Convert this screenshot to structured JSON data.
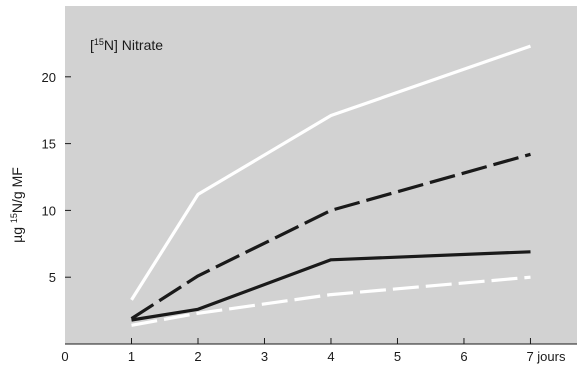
{
  "chart_data": {
    "type": "line",
    "ylabel_parts": [
      "µg ",
      "15",
      "N/g MF"
    ],
    "annotation_parts": [
      "[",
      "15",
      "N] Nitrate"
    ],
    "x_ticks": [
      0,
      1,
      2,
      3,
      4,
      5,
      6,
      7
    ],
    "x_tick_labels": [
      "0",
      "1",
      "2",
      "3",
      "4",
      "5",
      "6",
      "7 jours"
    ],
    "y_ticks": [
      5,
      10,
      15,
      20
    ],
    "y_tick_labels": [
      "5",
      "10",
      "15",
      "20"
    ],
    "xlim": [
      0,
      7.7
    ],
    "ylim": [
      0,
      25.3
    ],
    "grid": false,
    "background_color": "#d2d2d2",
    "series": [
      {
        "color": "#ffffff",
        "dash": "solid",
        "x": [
          1,
          2,
          4,
          7
        ],
        "y": [
          3.3,
          11.2,
          17.1,
          22.3
        ]
      },
      {
        "color": "#1a1a1a",
        "dash": "dashed",
        "x": [
          1,
          2,
          4,
          7
        ],
        "y": [
          1.9,
          5.1,
          10.0,
          14.2
        ]
      },
      {
        "color": "#1a1a1a",
        "dash": "solid",
        "x": [
          1,
          2,
          4,
          7
        ],
        "y": [
          1.8,
          2.6,
          6.3,
          6.9
        ]
      },
      {
        "color": "#ffffff",
        "dash": "dashed",
        "x": [
          1,
          2,
          4,
          7
        ],
        "y": [
          1.4,
          2.3,
          3.7,
          5.0
        ]
      }
    ]
  }
}
